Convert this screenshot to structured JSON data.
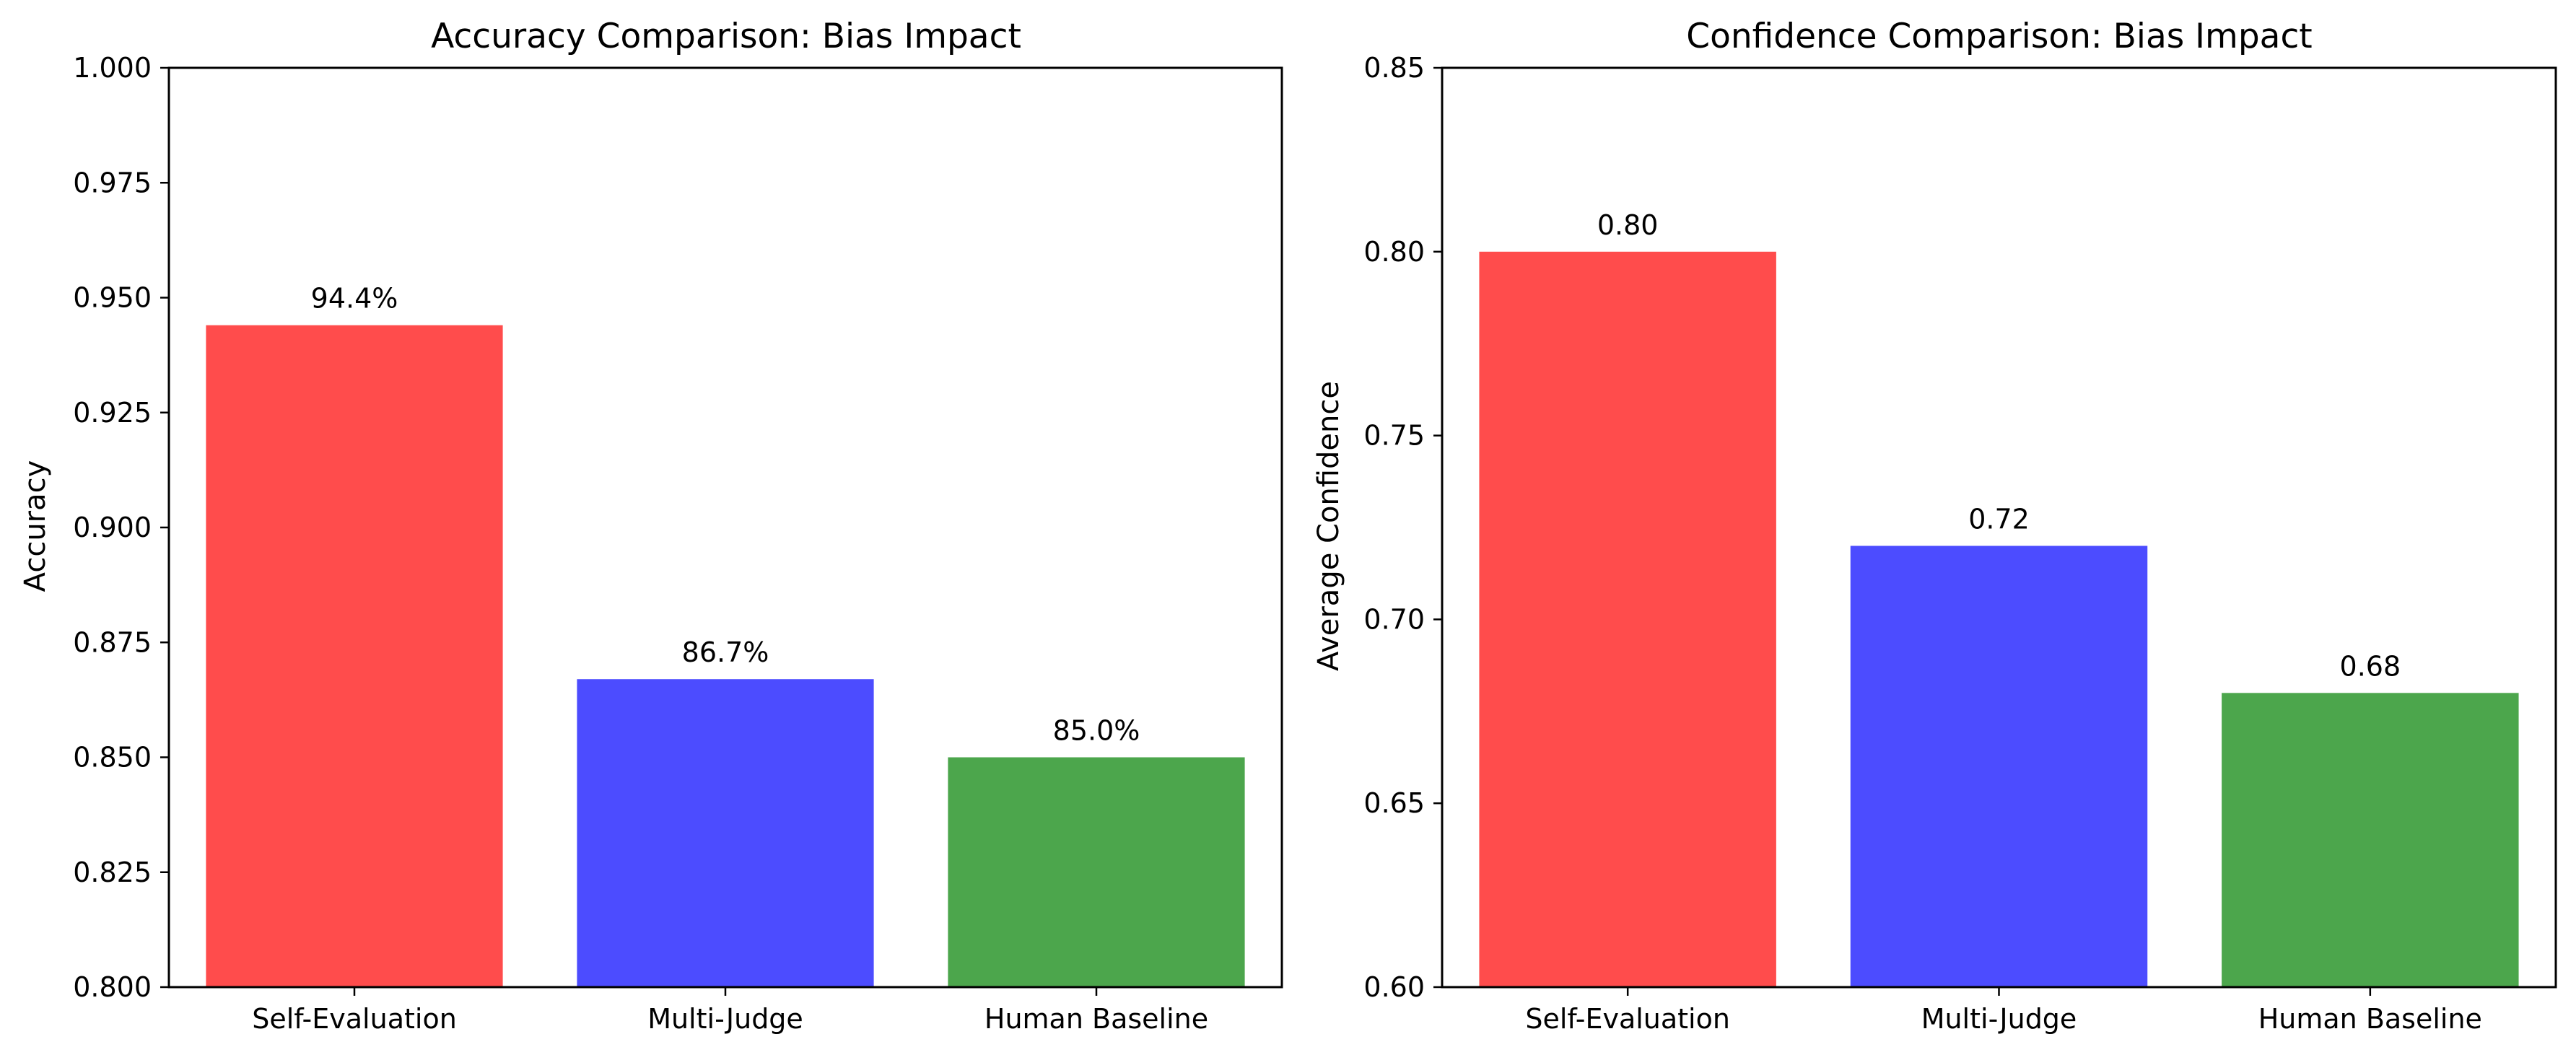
{
  "chart_data": [
    {
      "type": "bar",
      "title": "Accuracy Comparison: Bias Impact",
      "xlabel": "",
      "ylabel": "Accuracy",
      "categories": [
        "Self-Evaluation",
        "Multi-Judge",
        "Human Baseline"
      ],
      "values": [
        0.944,
        0.867,
        0.85
      ],
      "data_labels": [
        "94.4%",
        "86.7%",
        "85.0%"
      ],
      "colors": [
        "#ff4c4c",
        "#4c4cff",
        "#4ca64c"
      ],
      "ylim": [
        0.8,
        1.0
      ],
      "yticks": [
        "0.800",
        "0.825",
        "0.850",
        "0.875",
        "0.900",
        "0.925",
        "0.950",
        "0.975",
        "1.000"
      ],
      "grid": false,
      "legend": "none"
    },
    {
      "type": "bar",
      "title": "Confidence Comparison: Bias Impact",
      "xlabel": "",
      "ylabel": "Average Confidence",
      "categories": [
        "Self-Evaluation",
        "Multi-Judge",
        "Human Baseline"
      ],
      "values": [
        0.8,
        0.72,
        0.68
      ],
      "data_labels": [
        "0.80",
        "0.72",
        "0.68"
      ],
      "colors": [
        "#ff4c4c",
        "#4c4cff",
        "#4ca64c"
      ],
      "ylim": [
        0.6,
        0.85
      ],
      "yticks": [
        "0.60",
        "0.65",
        "0.70",
        "0.75",
        "0.80",
        "0.85"
      ],
      "grid": false,
      "legend": "none"
    }
  ]
}
